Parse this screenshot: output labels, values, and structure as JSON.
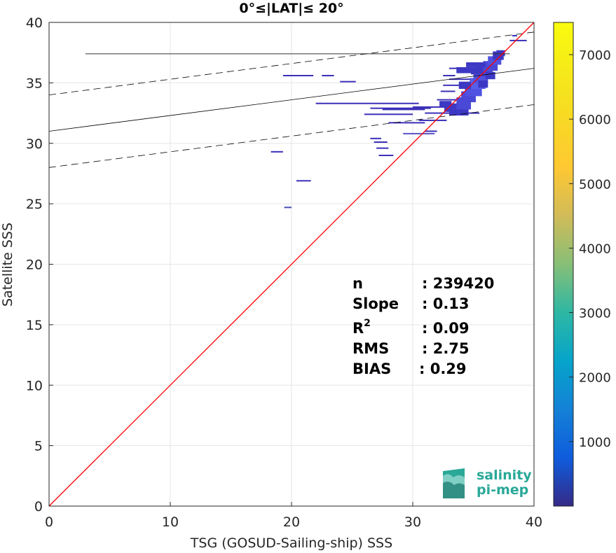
{
  "chart_data": {
    "type": "heatmap",
    "title": "0°≤|LAT|≤ 20°",
    "xlabel": "TSG (GOSUD-Sailing-ship) SSS",
    "ylabel": "Satellite SSS",
    "xlim": [
      0,
      40
    ],
    "ylim": [
      0,
      40
    ],
    "xticks": [
      0,
      10,
      20,
      30,
      40
    ],
    "yticks": [
      0,
      5,
      10,
      15,
      20,
      25,
      30,
      35,
      40
    ],
    "grid": true,
    "colorbar": {
      "ticks": [
        1000,
        2000,
        3000,
        4000,
        5000,
        6000,
        7000
      ],
      "range": [
        0,
        7500
      ],
      "colormap": "parula"
    },
    "identity_line": {
      "color": "#ff0000"
    },
    "regression": {
      "slope": 0.13,
      "intercept": 31.0,
      "band": 3.0
    },
    "horizontal_line": {
      "y": 37.4,
      "x0": 3,
      "x1": 38
    },
    "stats": [
      {
        "label": "n",
        "value": ": 239420"
      },
      {
        "label": "Slope",
        "value": ": 0.13"
      },
      {
        "label": "R",
        "sup": "2",
        "value": ": 0.09"
      },
      {
        "label": "RMS",
        "value": ": 2.75"
      },
      {
        "label": "BIAS",
        "value": ": 0.29"
      }
    ],
    "segments": [
      {
        "x0": 19.4,
        "x1": 20.0,
        "y": 24.7,
        "c": "#4d4db3"
      },
      {
        "x0": 20.4,
        "x1": 21.6,
        "y": 26.9,
        "c": "#3b2fb8"
      },
      {
        "x0": 18.3,
        "x1": 19.3,
        "y": 29.3,
        "c": "#3b2fb8"
      },
      {
        "x0": 27.2,
        "x1": 28.4,
        "y": 29.0,
        "c": "#3b2fb8"
      },
      {
        "x0": 27.0,
        "x1": 28.0,
        "y": 29.6,
        "c": "#3b2fb8"
      },
      {
        "x0": 26.8,
        "x1": 27.9,
        "y": 30.1,
        "c": "#3b2fb8"
      },
      {
        "x0": 26.5,
        "x1": 27.4,
        "y": 30.4,
        "c": "#3b2fb8"
      },
      {
        "x0": 29.2,
        "x1": 31.8,
        "y": 30.8,
        "c": "#5a55c8"
      },
      {
        "x0": 31.0,
        "x1": 32.0,
        "y": 31.0,
        "c": "#3b2fb8"
      },
      {
        "x0": 28.0,
        "x1": 31.0,
        "y": 31.7,
        "c": "#3b2fb8"
      },
      {
        "x0": 30.5,
        "x1": 32.8,
        "y": 31.9,
        "c": "#3b2fb8"
      },
      {
        "x0": 26.0,
        "x1": 30.0,
        "y": 32.4,
        "c": "#3b2fb8"
      },
      {
        "x0": 27.5,
        "x1": 31.0,
        "y": 32.8,
        "c": "#3b2fb8"
      },
      {
        "x0": 31.0,
        "x1": 35.5,
        "y": 32.5,
        "c": "#3b2fb8"
      },
      {
        "x0": 26.5,
        "x1": 31.5,
        "y": 32.9,
        "c": "#3b2fb8"
      },
      {
        "x0": 22.0,
        "x1": 30.5,
        "y": 33.3,
        "c": "#3b2fb8"
      },
      {
        "x0": 30.0,
        "x1": 34.0,
        "y": 33.0,
        "c": "#3b2fb8"
      },
      {
        "x0": 32.0,
        "x1": 35.0,
        "y": 33.6,
        "c": "#3b2fb8"
      },
      {
        "x0": 24.0,
        "x1": 25.3,
        "y": 35.1,
        "c": "#3b2fb8"
      },
      {
        "x0": 19.3,
        "x1": 21.8,
        "y": 35.6,
        "c": "#3b2fb8"
      },
      {
        "x0": 22.5,
        "x1": 23.5,
        "y": 35.6,
        "c": "#3b2fb8"
      },
      {
        "x0": 32.3,
        "x1": 33.5,
        "y": 34.3,
        "c": "#3b2fb8"
      },
      {
        "x0": 32.5,
        "x1": 34.0,
        "y": 34.8,
        "c": "#3b2fb8"
      },
      {
        "x0": 33.0,
        "x1": 35.0,
        "y": 35.3,
        "c": "#3b2fb8"
      },
      {
        "x0": 32.5,
        "x1": 33.5,
        "y": 35.6,
        "c": "#3b2fb8"
      },
      {
        "x0": 33.0,
        "x1": 35.5,
        "y": 36.2,
        "c": "#3b2fb8"
      },
      {
        "x0": 38.2,
        "x1": 38.6,
        "y": 38.9,
        "c": "#3b2fb8"
      },
      {
        "x0": 38.0,
        "x1": 39.4,
        "y": 38.5,
        "c": "#3b2fb8"
      }
    ],
    "cells": [
      {
        "x": 32.6,
        "y": 32.6,
        "w": 1.4,
        "h": 0.6,
        "c": "#3d38c4"
      },
      {
        "x": 33.0,
        "y": 32.3,
        "w": 1.6,
        "h": 1.0,
        "c": "#3d38c4"
      },
      {
        "x": 33.6,
        "y": 32.8,
        "w": 1.2,
        "h": 1.0,
        "c": "#4a48d6"
      },
      {
        "x": 34.0,
        "y": 33.4,
        "w": 1.2,
        "h": 0.9,
        "c": "#4a48d6"
      },
      {
        "x": 34.3,
        "y": 33.9,
        "w": 1.4,
        "h": 0.9,
        "c": "#4f52e0"
      },
      {
        "x": 34.7,
        "y": 34.5,
        "w": 1.3,
        "h": 0.9,
        "c": "#5760ea"
      },
      {
        "x": 35.0,
        "y": 35.0,
        "w": 1.2,
        "h": 0.8,
        "c": "#4f52e0"
      },
      {
        "x": 35.3,
        "y": 35.5,
        "w": 1.3,
        "h": 0.9,
        "c": "#4a48d6"
      },
      {
        "x": 35.8,
        "y": 36.0,
        "w": 1.2,
        "h": 0.8,
        "c": "#4a48d6"
      },
      {
        "x": 36.2,
        "y": 36.5,
        "w": 1.1,
        "h": 0.7,
        "c": "#4f52e0"
      },
      {
        "x": 36.6,
        "y": 36.9,
        "w": 0.9,
        "h": 0.7,
        "c": "#3d38c4"
      },
      {
        "x": 36.9,
        "y": 37.2,
        "w": 0.7,
        "h": 0.5,
        "c": "#3d38c4"
      },
      {
        "x": 33.8,
        "y": 34.5,
        "w": 1.0,
        "h": 0.6,
        "c": "#3d38c4"
      },
      {
        "x": 34.8,
        "y": 35.7,
        "w": 1.0,
        "h": 0.6,
        "c": "#3d38c4"
      },
      {
        "x": 33.6,
        "y": 35.8,
        "w": 1.3,
        "h": 0.5,
        "c": "#3d38c4"
      },
      {
        "x": 32.2,
        "y": 33.0,
        "w": 1.0,
        "h": 0.5,
        "c": "#3d38c4"
      },
      {
        "x": 35.4,
        "y": 34.6,
        "w": 0.8,
        "h": 0.6,
        "c": "#3d38c4"
      },
      {
        "x": 36.0,
        "y": 35.3,
        "w": 0.8,
        "h": 0.6,
        "c": "#3d38c4"
      },
      {
        "x": 34.4,
        "y": 36.3,
        "w": 1.6,
        "h": 0.4,
        "c": "#3d38c4"
      }
    ]
  }
}
